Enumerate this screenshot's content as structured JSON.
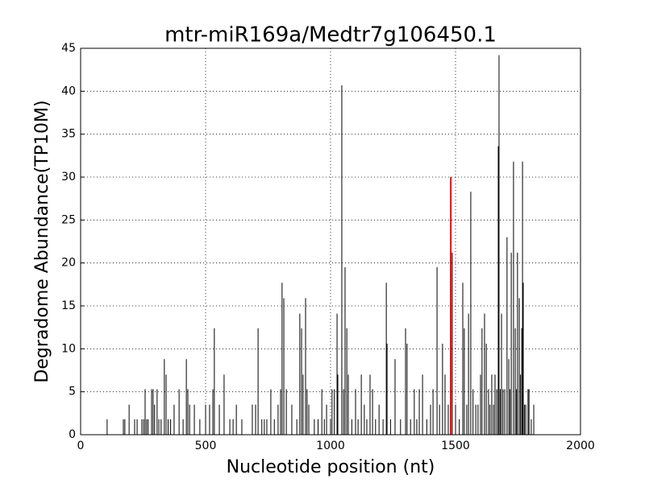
{
  "chart_data": {
    "type": "vlines",
    "title": "mtr-miR169a/Medtr7g106450.1",
    "x_label": "Nucleotide position (nt)",
    "y_label": "Degradome Abundance(TP10M)",
    "xlim": [
      0,
      2000
    ],
    "xticks": [
      0,
      500,
      1000,
      1500,
      2000
    ],
    "ylim": [
      0,
      45
    ],
    "yticks": [
      0,
      5,
      10,
      15,
      20,
      25,
      30,
      35,
      40,
      45
    ],
    "grid": true,
    "color": "#000000",
    "x": [
      106,
      171,
      177,
      194,
      216,
      226,
      245,
      252,
      258,
      264,
      270,
      284,
      290,
      296,
      306,
      313,
      322,
      335,
      342,
      350,
      360,
      374,
      394,
      410,
      423,
      429,
      436,
      455,
      477,
      500,
      516,
      529,
      535,
      555,
      574,
      597,
      610,
      623,
      645,
      687,
      700,
      710,
      725,
      735,
      745,
      761,
      775,
      790,
      800,
      806,
      813,
      823,
      845,
      865,
      877,
      884,
      890,
      900,
      906,
      913,
      935,
      950,
      965,
      975,
      984,
      1000,
      1006,
      1015,
      1026,
      1029,
      1045,
      1052,
      1058,
      1065,
      1071,
      1085,
      1100,
      1110,
      1123,
      1135,
      1145,
      1158,
      1168,
      1180,
      1194,
      1210,
      1223,
      1226,
      1240,
      1258,
      1280,
      1300,
      1306,
      1320,
      1335,
      1345,
      1355,
      1368,
      1385,
      1400,
      1410,
      1426,
      1436,
      1448,
      1458,
      1471,
      1487,
      1500,
      1515,
      1529,
      1535,
      1545,
      1552,
      1561,
      1570,
      1581,
      1590,
      1600,
      1606,
      1616,
      1623,
      1632,
      1638,
      1645,
      1652,
      1658,
      1665,
      1671,
      1674,
      1679,
      1684,
      1690,
      1697,
      1706,
      1713,
      1718,
      1723,
      1732,
      1739,
      1744,
      1748,
      1755,
      1760,
      1765,
      1768,
      1771,
      1776,
      1781,
      1790,
      1794,
      1803,
      1813
    ],
    "values": [
      1.8,
      1.8,
      1.8,
      3.5,
      1.8,
      1.8,
      1.8,
      1.8,
      5.3,
      1.8,
      1.8,
      5.3,
      5.3,
      3.5,
      5.3,
      1.8,
      1.8,
      8.8,
      7,
      1.8,
      1.8,
      3.5,
      5.3,
      1.8,
      8.8,
      5.3,
      3.5,
      3.5,
      1.8,
      3.5,
      3.5,
      5.3,
      12.4,
      3.5,
      7,
      1.8,
      1.8,
      3.5,
      1.8,
      3.5,
      3.5,
      12.4,
      1.8,
      1.8,
      1.8,
      5.3,
      1.8,
      3.5,
      5.3,
      17.7,
      15.9,
      5.3,
      3.5,
      1.8,
      14.1,
      12.4,
      7,
      15.9,
      5.3,
      3.5,
      1.8,
      1.8,
      5.3,
      1.8,
      3.5,
      1.8,
      5.3,
      5.3,
      14.1,
      7,
      40.7,
      5.3,
      19.5,
      12.4,
      7,
      1.8,
      5.3,
      1.8,
      7,
      3.5,
      1.8,
      7,
      5.3,
      1.8,
      3.5,
      1.8,
      17.7,
      10.6,
      1.8,
      8.8,
      1.8,
      12.4,
      10.6,
      1.8,
      5.3,
      1.8,
      5.3,
      7,
      1.8,
      3.5,
      5.3,
      19.5,
      3.5,
      10.6,
      7,
      3.5,
      21.2,
      3.5,
      1.8,
      17.7,
      12.4,
      3.5,
      14.1,
      28.3,
      5.3,
      3.5,
      3.5,
      7,
      12.4,
      14.1,
      10.6,
      5.3,
      3.5,
      7,
      3.5,
      7,
      5.3,
      33.6,
      44.2,
      5.3,
      14.1,
      5.3,
      5.3,
      23,
      8.8,
      5.3,
      21.2,
      31.8,
      12.4,
      5.3,
      21.2,
      15.9,
      7,
      12.4,
      31.8,
      17.7,
      3.5,
      3.5,
      5.3,
      5.3,
      1.8,
      3.5
    ],
    "highlight": {
      "x": 1481,
      "value": 30,
      "color": "#ff0000"
    }
  }
}
